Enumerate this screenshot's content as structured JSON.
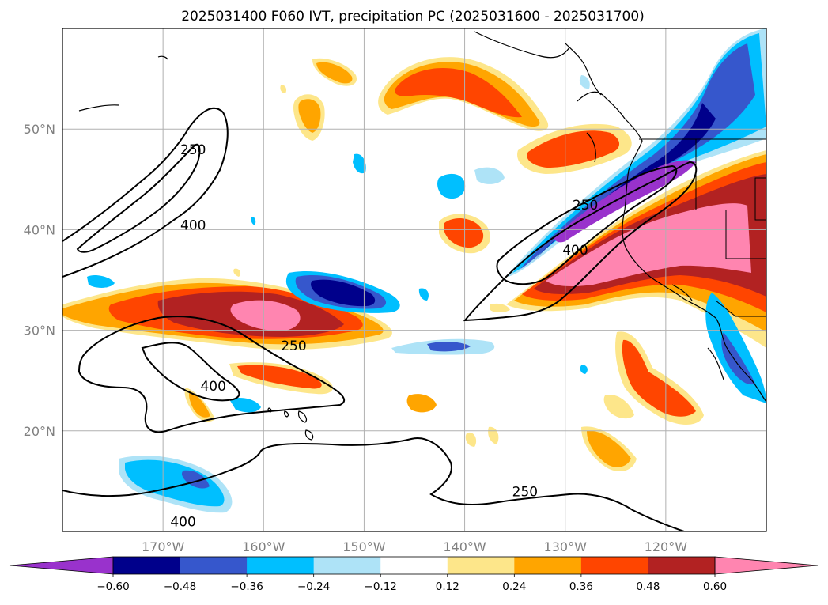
{
  "title": "2025031400 F060 IVT, precipitation PC (2025031600 - 2025031700)",
  "map": {
    "lon_range": [
      -180,
      -110
    ],
    "lat_range": [
      10,
      60
    ],
    "lon_ticks": [
      {
        "value": -170,
        "label": "170°W"
      },
      {
        "value": -160,
        "label": "160°W"
      },
      {
        "value": -150,
        "label": "150°W"
      },
      {
        "value": -140,
        "label": "140°W"
      },
      {
        "value": -130,
        "label": "130°W"
      },
      {
        "value": -120,
        "label": "120°W"
      }
    ],
    "lat_ticks": [
      {
        "value": 20,
        "label": "20°N"
      },
      {
        "value": 30,
        "label": "30°N"
      },
      {
        "value": 40,
        "label": "40°N"
      },
      {
        "value": 50,
        "label": "50°N"
      }
    ],
    "grid": true,
    "ivt_contour_levels": [
      250,
      400
    ],
    "contour_labels": [
      {
        "text": "250",
        "lon": -167,
        "lat": 47.5
      },
      {
        "text": "400",
        "lon": -167,
        "lat": 40
      },
      {
        "text": "250",
        "lon": -157,
        "lat": 28
      },
      {
        "text": "400",
        "lon": -165,
        "lat": 24
      },
      {
        "text": "250",
        "lon": -128,
        "lat": 42
      },
      {
        "text": "400",
        "lon": -129,
        "lat": 37.5
      },
      {
        "text": "250",
        "lon": -134,
        "lat": 13.5
      },
      {
        "text": "400",
        "lon": -168,
        "lat": 10.5
      }
    ]
  },
  "colorbar": {
    "extend": "both",
    "bounds": [
      "-0.60",
      "-0.48",
      "-0.36",
      "-0.24",
      "-0.12",
      "0.12",
      "0.24",
      "0.36",
      "0.48",
      "0.60"
    ],
    "colors": [
      "#9932cc",
      "#00008b",
      "#3657cc",
      "#00bfff",
      "#aee3f7",
      "#ffffff",
      "#fde68a",
      "#ffa500",
      "#ff4500",
      "#b22222",
      "#ff85b0"
    ]
  }
}
